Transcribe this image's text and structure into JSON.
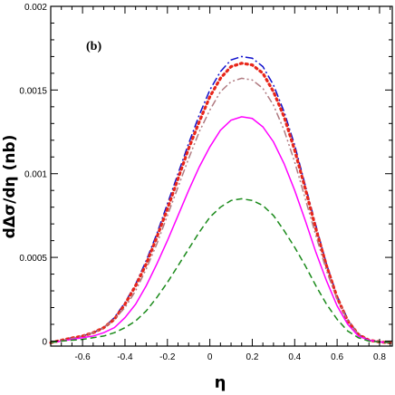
{
  "chart_data": {
    "type": "line",
    "panel_label": "(b)",
    "xlabel": "η",
    "ylabel": "dΔσ/dη (nb)",
    "xlim": [
      -0.75,
      0.86
    ],
    "ylim": [
      -3e-05,
      0.002
    ],
    "x_ticks": [
      -0.6,
      -0.4,
      -0.2,
      0,
      0.2,
      0.4,
      0.6,
      0.8
    ],
    "x_tick_labels": [
      "-0.6",
      "-0.4",
      "-0.2",
      "0",
      "0.2",
      "0.4",
      "0.6",
      "0.8"
    ],
    "y_ticks": [
      0,
      0.0005,
      0.001,
      0.0015,
      0.002
    ],
    "y_tick_labels": [
      "0",
      "0.0005",
      "0.001",
      "0.0015",
      "0.002"
    ],
    "x": [
      -0.75,
      -0.7,
      -0.65,
      -0.6,
      -0.55,
      -0.5,
      -0.45,
      -0.4,
      -0.35,
      -0.3,
      -0.25,
      -0.2,
      -0.15,
      -0.1,
      -0.05,
      0,
      0.05,
      0.1,
      0.15,
      0.2,
      0.25,
      0.3,
      0.35,
      0.4,
      0.45,
      0.5,
      0.55,
      0.6,
      0.65,
      0.7,
      0.75,
      0.8,
      0.85
    ],
    "series": [
      {
        "style": "dash-dot",
        "color": "#1010cc",
        "values": [
          -1e-05,
          5e-06,
          2e-05,
          3e-05,
          5e-05,
          8e-05,
          0.00014,
          0.00023,
          0.00034,
          0.00048,
          0.00064,
          0.00082,
          0.001,
          0.00118,
          0.00135,
          0.0015,
          0.00161,
          0.00168,
          0.0017,
          0.00169,
          0.00164,
          0.00153,
          0.00137,
          0.00117,
          0.00093,
          0.00069,
          0.00046,
          0.00027,
          0.00013,
          4e-05,
          5e-06,
          -5e-06,
          -1e-05
        ]
      },
      {
        "style": "dotted",
        "color": "#e8261a",
        "values": [
          -1e-05,
          5e-06,
          1.8e-05,
          3e-05,
          5e-05,
          8e-05,
          0.00013,
          0.00022,
          0.00033,
          0.00046,
          0.00062,
          0.00079,
          0.00097,
          0.00115,
          0.00131,
          0.00146,
          0.00157,
          0.00164,
          0.00166,
          0.00165,
          0.0016,
          0.00149,
          0.00134,
          0.00114,
          0.00091,
          0.00067,
          0.00045,
          0.00026,
          0.00012,
          4e-05,
          5e-06,
          -5e-06,
          -1e-05
        ]
      },
      {
        "style": "dash-dot-dot",
        "color": "#b07a80",
        "values": [
          -1e-05,
          5e-06,
          1.5e-05,
          3e-05,
          5e-05,
          8e-05,
          0.00013,
          0.0002,
          0.0003,
          0.00043,
          0.00058,
          0.00075,
          0.00092,
          0.00109,
          0.00125,
          0.00138,
          0.00149,
          0.00155,
          0.00157,
          0.00156,
          0.00151,
          0.00141,
          0.00126,
          0.00107,
          0.00085,
          0.00063,
          0.00042,
          0.00025,
          0.00012,
          4e-05,
          5e-06,
          -5e-06,
          -1e-05
        ]
      },
      {
        "style": "solid",
        "color": "#ff00ff",
        "values": [
          -1e-05,
          0,
          1e-05,
          2e-05,
          3e-05,
          5e-05,
          8e-05,
          0.00014,
          0.00022,
          0.00033,
          0.00046,
          0.0006,
          0.00075,
          0.0009,
          0.00104,
          0.00116,
          0.00126,
          0.00132,
          0.00134,
          0.00133,
          0.00128,
          0.00119,
          0.00106,
          0.0009,
          0.00072,
          0.00053,
          0.00036,
          0.00021,
          0.0001,
          3e-05,
          5e-06,
          -5e-06,
          -1e-05
        ]
      },
      {
        "style": "dashed",
        "color": "#1a8a1a",
        "values": [
          -1e-05,
          0,
          5e-06,
          1e-05,
          2e-05,
          3e-05,
          5e-05,
          8e-05,
          0.00012,
          0.00018,
          0.00026,
          0.00035,
          0.00045,
          0.00055,
          0.00065,
          0.00074,
          0.0008,
          0.00084,
          0.00085,
          0.00084,
          0.00081,
          0.00075,
          0.00066,
          0.00056,
          0.00045,
          0.00033,
          0.00022,
          0.00013,
          6e-05,
          2e-05,
          0,
          -5e-06,
          -1e-05
        ]
      }
    ]
  }
}
